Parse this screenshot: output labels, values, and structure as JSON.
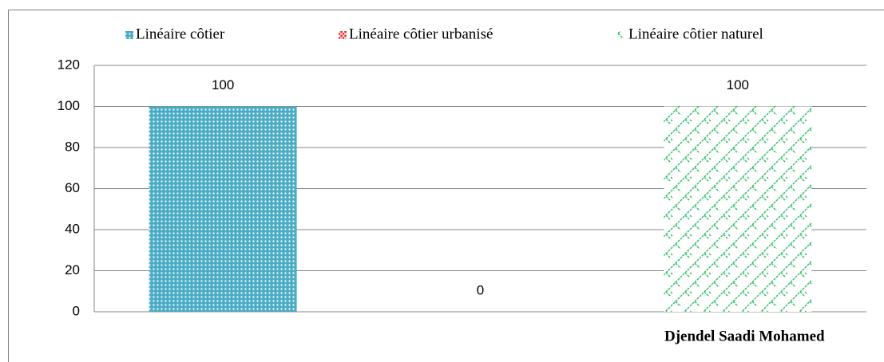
{
  "chart_data": {
    "type": "bar",
    "categories": [
      null
    ],
    "series": [
      {
        "name": "Linéaire côtier",
        "color": "#4bacc6",
        "values": [
          100
        ]
      },
      {
        "name": "Linéaire côtier urbanisé",
        "color": "#e8251f",
        "values": [
          0
        ]
      },
      {
        "name": "Linéaire côtier naturel",
        "color": "#33c06a",
        "values": [
          100
        ]
      }
    ],
    "ylim": [
      0,
      120
    ],
    "yticks": [
      0,
      20,
      40,
      60,
      80,
      100,
      120
    ],
    "grid": true,
    "legend": "top",
    "annotation": "Djendel Saadi Mohamed"
  }
}
